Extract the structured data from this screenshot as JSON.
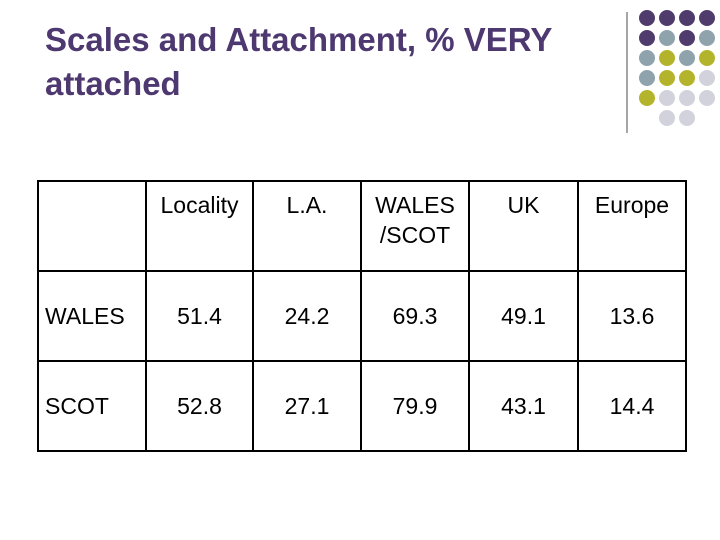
{
  "header": {
    "title": "Scales and Attachment, % VERY attached"
  },
  "table": {
    "columns": [
      "Locality",
      "L.A.",
      "WALES /SCOT",
      "UK",
      "Europe"
    ],
    "rows": [
      {
        "label": "WALES",
        "values": [
          51.4,
          24.2,
          69.3,
          49.1,
          13.6
        ]
      },
      {
        "label": "SCOT",
        "values": [
          52.8,
          27.1,
          79.9,
          43.1,
          14.4
        ]
      }
    ]
  }
}
